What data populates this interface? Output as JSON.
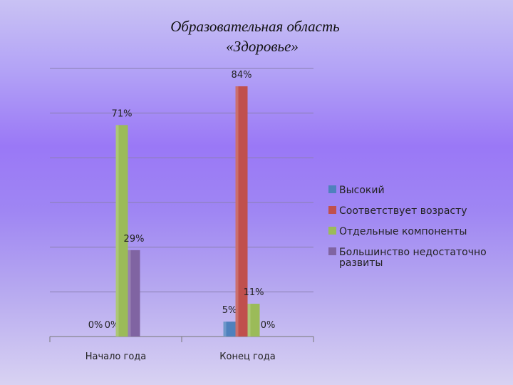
{
  "title": {
    "line1": "Образовательная область",
    "line2": "«Здоровье»"
  },
  "chart_data": {
    "type": "bar",
    "categories": [
      "Начало года",
      "Конец года"
    ],
    "series": [
      {
        "name": "Высокий",
        "values": [
          0,
          5
        ],
        "labels": [
          "0%",
          "5%"
        ],
        "color": "#4f81bd"
      },
      {
        "name": "Соответствует возрасту",
        "values": [
          0,
          84
        ],
        "labels": [
          "0%",
          "84%"
        ],
        "color": "#c0504d"
      },
      {
        "name": "Отдельные компоненты",
        "values": [
          71,
          11
        ],
        "labels": [
          "71%",
          "11%"
        ],
        "color": "#9bbb59"
      },
      {
        "name": "Большинство недостаточно развиты",
        "values": [
          29,
          0
        ],
        "labels": [
          "29%",
          "0%"
        ],
        "color": "#8064a2"
      }
    ],
    "ylim": [
      0,
      90
    ],
    "grid": true,
    "legend": "right"
  }
}
